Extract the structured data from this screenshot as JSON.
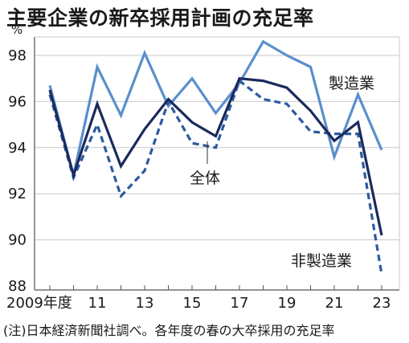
{
  "chart_data": {
    "type": "line",
    "title": "主要企業の新卒採用計画の充足率",
    "unit": "%",
    "note": "(注)日本経済新聞社調べ。各年度の春の大卒採用の充足率",
    "x": [
      2009,
      2010,
      2011,
      2012,
      2013,
      2014,
      2015,
      2016,
      2017,
      2018,
      2019,
      2020,
      2021,
      2022,
      2023
    ],
    "x_tick_labels": [
      {
        "x": 2009,
        "label": "2009年度"
      },
      {
        "x": 2011,
        "label": "11"
      },
      {
        "x": 2013,
        "label": "13"
      },
      {
        "x": 2015,
        "label": "15"
      },
      {
        "x": 2017,
        "label": "17"
      },
      {
        "x": 2019,
        "label": "19"
      },
      {
        "x": 2021,
        "label": "21"
      },
      {
        "x": 2023,
        "label": "23"
      }
    ],
    "y_ticks": [
      88,
      90,
      92,
      94,
      96,
      98
    ],
    "ylim": [
      88,
      99
    ],
    "grid": true,
    "series": [
      {
        "name": "製造業",
        "color": "#5a8fcb",
        "style": "solid",
        "values": [
          96.7,
          92.8,
          97.5,
          95.4,
          98.1,
          95.8,
          97.0,
          95.5,
          96.8,
          98.6,
          98.0,
          97.5,
          93.6,
          96.3,
          93.9
        ]
      },
      {
        "name": "全体",
        "color": "#1b2a5c",
        "style": "solid",
        "values": [
          96.5,
          92.8,
          95.9,
          93.2,
          94.8,
          96.1,
          95.1,
          94.5,
          97.0,
          96.9,
          96.6,
          95.6,
          94.3,
          95.1,
          90.2
        ]
      },
      {
        "name": "非製造業",
        "color": "#2c5aa0",
        "style": "dashed",
        "values": [
          96.3,
          92.7,
          95.0,
          91.9,
          93.0,
          96.0,
          94.2,
          94.0,
          96.9,
          96.1,
          95.9,
          94.7,
          94.6,
          94.6,
          88.5
        ]
      }
    ]
  }
}
